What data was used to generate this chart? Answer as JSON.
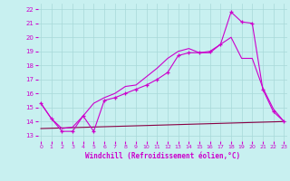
{
  "title": "",
  "xlabel": "Windchill (Refroidissement éolien,°C)",
  "bg_color": "#c8f0f0",
  "grid_color": "#a8d8d8",
  "line_color": "#cc00cc",
  "line3_color": "#880088",
  "x_ticks": [
    0,
    1,
    2,
    3,
    4,
    5,
    6,
    7,
    8,
    9,
    10,
    11,
    12,
    13,
    14,
    15,
    16,
    17,
    18,
    19,
    20,
    21,
    22,
    23
  ],
  "y_ticks": [
    13,
    14,
    15,
    16,
    17,
    18,
    19,
    20,
    21,
    22
  ],
  "xlim": [
    -0.3,
    23.3
  ],
  "ylim": [
    12.6,
    22.4
  ],
  "line1_x": [
    0,
    1,
    2,
    3,
    4,
    5,
    6,
    7,
    8,
    9,
    10,
    11,
    12,
    13,
    14,
    15,
    16,
    17,
    18,
    19,
    20,
    21,
    22,
    23
  ],
  "line1_y": [
    15.3,
    14.2,
    13.3,
    13.3,
    14.4,
    13.3,
    15.5,
    15.7,
    16.0,
    16.3,
    16.6,
    17.0,
    17.5,
    18.7,
    18.9,
    18.9,
    19.0,
    19.5,
    21.8,
    21.1,
    21.0,
    16.3,
    14.7,
    14.0
  ],
  "line2_x": [
    0,
    23
  ],
  "line2_y": [
    13.5,
    14.0
  ],
  "line3_x": [
    0,
    1,
    2,
    3,
    4,
    5,
    6,
    7,
    8,
    9,
    10,
    11,
    12,
    13,
    14,
    15,
    16,
    17,
    18,
    19,
    20,
    21,
    22,
    23
  ],
  "line3_y": [
    15.3,
    14.2,
    13.5,
    13.6,
    14.4,
    15.3,
    15.7,
    16.0,
    16.5,
    16.6,
    17.2,
    17.8,
    18.5,
    19.0,
    19.2,
    18.9,
    18.9,
    19.5,
    20.0,
    18.5,
    18.5,
    16.4,
    14.9,
    14.0
  ]
}
